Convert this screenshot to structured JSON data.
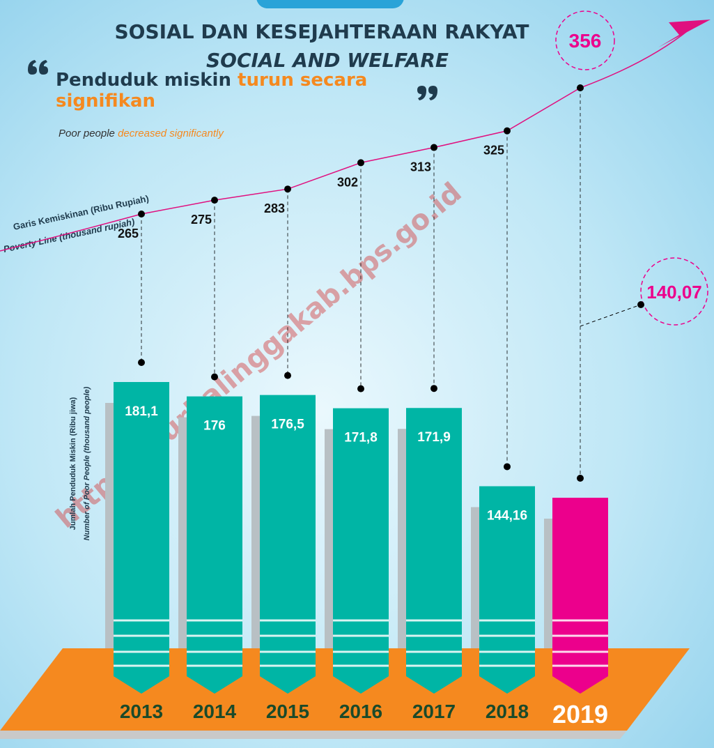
{
  "header": {
    "title": "SOSIAL DAN KESEJAHTERAAN RAKYAT",
    "subtitle": "SOCIAL AND WELFARE"
  },
  "quote": {
    "text": "Penduduk miskin",
    "highlight": "turun secara signifikan",
    "translation": "Poor people",
    "translation_highlight": "decreased significantly"
  },
  "watermark": "https://purbalinggakab.bps.go.id",
  "chart_data": {
    "type": "bar",
    "categories": [
      "2013",
      "2014",
      "2015",
      "2016",
      "2017",
      "2018",
      "2019"
    ],
    "series": [
      {
        "name": "Jumlah Penduduk Miskin (Ribu jiwa)",
        "name_en": "Number of Poor People (thousand people)",
        "type": "bar",
        "color": "#00b5a5",
        "highlight_color": "#ec008c",
        "values": [
          181.1,
          176,
          176.5,
          171.8,
          171.9,
          144.16,
          140.07
        ],
        "value_labels": [
          "181,1",
          "176",
          "176,5",
          "171,8",
          "171,9",
          "144,16",
          "140,07"
        ]
      },
      {
        "name": "Garis Kemiskinan (Ribu Rupiah)",
        "name_en": "Poverty Line (thousand rupiah)",
        "type": "line",
        "axis": "y2",
        "color": "#e0107f",
        "values": [
          265,
          275,
          283,
          302,
          313,
          325,
          356
        ]
      }
    ]
  }
}
